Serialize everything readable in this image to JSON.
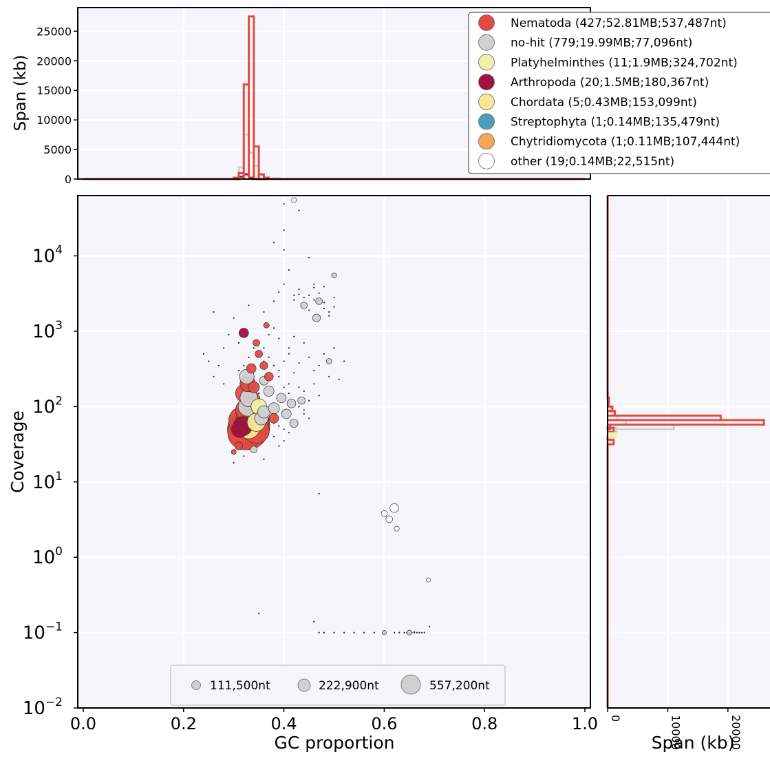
{
  "chart_data": [
    {
      "id": "gc-hist",
      "type": "histogram",
      "ylabel": "Span (kb)",
      "xlim": [
        0,
        1
      ],
      "ylim": [
        0,
        29000
      ],
      "yticks": [
        "0",
        "5000",
        "10000",
        "15000",
        "20000",
        "25000"
      ],
      "grid": true,
      "series": [
        {
          "name": "Nematoda",
          "color": "#e34a43",
          "bins": [
            [
              0.3,
              200
            ],
            [
              0.31,
              1000
            ],
            [
              0.32,
              16000
            ],
            [
              0.33,
              27500
            ],
            [
              0.34,
              5500
            ],
            [
              0.35,
              800
            ],
            [
              0.36,
              200
            ]
          ]
        },
        {
          "name": "no-hit",
          "color": "#d0d0d0",
          "bins": [
            [
              0.3,
              300
            ],
            [
              0.31,
              2000
            ],
            [
              0.32,
              7500
            ],
            [
              0.33,
              4500
            ],
            [
              0.34,
              2200
            ],
            [
              0.35,
              700
            ],
            [
              0.36,
              300
            ],
            [
              0.38,
              150
            ]
          ]
        },
        {
          "name": "Arthropoda",
          "color": "#a0123f",
          "bins": [
            [
              0.31,
              400
            ],
            [
              0.32,
              800
            ],
            [
              0.33,
              200
            ]
          ]
        },
        {
          "name": "Platyhelminthes",
          "color": "#f2f0a4",
          "bins": [
            [
              0.33,
              400
            ],
            [
              0.34,
              500
            ]
          ]
        }
      ]
    },
    {
      "id": "blob-scatter",
      "type": "scatter",
      "xlabel": "GC proportion",
      "ylabel": "Coverage",
      "xlim": [
        0,
        1
      ],
      "ylim_log10": [
        -2,
        4.8
      ],
      "xticks": [
        "0.0",
        "0.2",
        "0.4",
        "0.6",
        "0.8",
        "1.0"
      ],
      "yticks": [
        {
          "base": "10",
          "exp": "−2"
        },
        {
          "base": "10",
          "exp": "−1"
        },
        {
          "base": "10",
          "exp": "0"
        },
        {
          "base": "10",
          "exp": "1"
        },
        {
          "base": "10",
          "exp": "2"
        },
        {
          "base": "10",
          "exp": "3"
        },
        {
          "base": "10",
          "exp": "4"
        }
      ],
      "grid": true,
      "size_legend": [
        "111,500nt",
        "222,900nt",
        "557,200nt"
      ],
      "size_legend_values": [
        111500,
        222900,
        557200
      ],
      "points": [
        {
          "gc": 0.328,
          "cov": 50,
          "len": 537487,
          "color": "#e34a43"
        },
        {
          "gc": 0.335,
          "cov": 55,
          "len": 450000,
          "color": "#e34a43"
        },
        {
          "gc": 0.322,
          "cov": 45,
          "len": 380000,
          "color": "#e34a43"
        },
        {
          "gc": 0.34,
          "cov": 60,
          "len": 300000,
          "color": "#e34a43"
        },
        {
          "gc": 0.318,
          "cov": 65,
          "len": 260000,
          "color": "#e34a43"
        },
        {
          "gc": 0.345,
          "cov": 48,
          "len": 220000,
          "color": "#e34a43"
        },
        {
          "gc": 0.33,
          "cov": 75,
          "len": 200000,
          "color": "#e34a43"
        },
        {
          "gc": 0.325,
          "cov": 90,
          "len": 150000,
          "color": "#e34a43"
        },
        {
          "gc": 0.333,
          "cov": 120,
          "len": 130000,
          "color": "#e34a43"
        },
        {
          "gc": 0.322,
          "cov": 150,
          "len": 110000,
          "color": "#e34a43"
        },
        {
          "gc": 0.328,
          "cov": 100,
          "len": 120000,
          "color": "#d0d0d0"
        },
        {
          "gc": 0.33,
          "cov": 130,
          "len": 100000,
          "color": "#d0d0d0"
        },
        {
          "gc": 0.326,
          "cov": 250,
          "len": 70000,
          "color": "#d0d0d0"
        },
        {
          "gc": 0.328,
          "cov": 200,
          "len": 80000,
          "color": "#e34a43"
        },
        {
          "gc": 0.335,
          "cov": 320,
          "len": 30000,
          "color": "#e34a43"
        },
        {
          "gc": 0.338,
          "cov": 70,
          "len": 180367,
          "color": "#a0123f"
        },
        {
          "gc": 0.318,
          "cov": 55,
          "len": 120000,
          "color": "#a0123f"
        },
        {
          "gc": 0.312,
          "cov": 50,
          "len": 90000,
          "color": "#a0123f"
        },
        {
          "gc": 0.32,
          "cov": 950,
          "len": 30000,
          "color": "#a0123f"
        },
        {
          "gc": 0.35,
          "cov": 100,
          "len": 80000,
          "color": "#f2f0a4"
        },
        {
          "gc": 0.33,
          "cov": 52,
          "len": 153099,
          "color": "#fbe694"
        },
        {
          "gc": 0.345,
          "cov": 62,
          "len": 110000,
          "color": "#fbe694"
        },
        {
          "gc": 0.355,
          "cov": 70,
          "len": 60000,
          "color": "#d0d0d0"
        },
        {
          "gc": 0.36,
          "cov": 85,
          "len": 50000,
          "color": "#d0d0d0"
        },
        {
          "gc": 0.38,
          "cov": 95,
          "len": 40000,
          "color": "#d0d0d0"
        },
        {
          "gc": 0.37,
          "cov": 160,
          "len": 35000,
          "color": "#d0d0d0"
        },
        {
          "gc": 0.36,
          "cov": 220,
          "len": 25000,
          "color": "#d0d0d0"
        },
        {
          "gc": 0.395,
          "cov": 130,
          "len": 30000,
          "color": "#d0d0d0"
        },
        {
          "gc": 0.405,
          "cov": 80,
          "len": 30000,
          "color": "#d0d0d0"
        },
        {
          "gc": 0.415,
          "cov": 110,
          "len": 25000,
          "color": "#d0d0d0"
        },
        {
          "gc": 0.42,
          "cov": 60,
          "len": 22000,
          "color": "#d0d0d0"
        },
        {
          "gc": 0.435,
          "cov": 120,
          "len": 18000,
          "color": "#d0d0d0"
        },
        {
          "gc": 0.465,
          "cov": 1500,
          "len": 20000,
          "color": "#d0d0d0"
        },
        {
          "gc": 0.47,
          "cov": 2500,
          "len": 15000,
          "color": "#d0d0d0"
        },
        {
          "gc": 0.44,
          "cov": 2200,
          "len": 15000,
          "color": "#d0d0d0"
        },
        {
          "gc": 0.36,
          "cov": 350,
          "len": 20000,
          "color": "#e34a43"
        },
        {
          "gc": 0.35,
          "cov": 500,
          "len": 18000,
          "color": "#e34a43"
        },
        {
          "gc": 0.345,
          "cov": 700,
          "len": 15000,
          "color": "#e34a43"
        },
        {
          "gc": 0.365,
          "cov": 1200,
          "len": 10000,
          "color": "#e34a43"
        },
        {
          "gc": 0.34,
          "cov": 180,
          "len": 40000,
          "color": "#e34a43"
        },
        {
          "gc": 0.37,
          "cov": 250,
          "len": 25000,
          "color": "#e34a43"
        },
        {
          "gc": 0.38,
          "cov": 70,
          "len": 30000,
          "color": "#e34a43"
        },
        {
          "gc": 0.31,
          "cov": 30,
          "len": 20000,
          "color": "#e34a43"
        },
        {
          "gc": 0.3,
          "cov": 25,
          "len": 8000,
          "color": "#e34a43"
        },
        {
          "gc": 0.34,
          "cov": 27,
          "len": 15000,
          "color": "#d0d0d0"
        },
        {
          "gc": 0.62,
          "cov": 4.5,
          "len": 25000,
          "color": "#ffffff"
        },
        {
          "gc": 0.6,
          "cov": 3.8,
          "len": 12000,
          "color": "#ffffff"
        },
        {
          "gc": 0.61,
          "cov": 3.2,
          "len": 15000,
          "color": "#ffffff"
        },
        {
          "gc": 0.625,
          "cov": 2.4,
          "len": 8000,
          "color": "#ffffff"
        },
        {
          "gc": 0.688,
          "cov": 0.5,
          "len": 6000,
          "color": "#ffffff"
        },
        {
          "gc": 0.42,
          "cov": 55000,
          "len": 8000,
          "color": "#ffffff"
        },
        {
          "gc": 0.5,
          "cov": 5500,
          "len": 8000,
          "color": "#d0d0d0"
        },
        {
          "gc": 0.49,
          "cov": 400,
          "len": 10000,
          "color": "#d0d0d0"
        },
        {
          "gc": 0.65,
          "cov": 0.1,
          "len": 8000,
          "color": "#d0d0d0"
        },
        {
          "gc": 0.6,
          "cov": 0.1,
          "len": 6000,
          "color": "#d0d0d0"
        }
      ],
      "scatter_dots": [
        [
          0.25,
          400
        ],
        [
          0.24,
          500
        ],
        [
          0.26,
          250
        ],
        [
          0.27,
          350
        ],
        [
          0.28,
          200
        ],
        [
          0.28,
          600
        ],
        [
          0.29,
          900
        ],
        [
          0.3,
          1500
        ],
        [
          0.31,
          700
        ],
        [
          0.26,
          1800
        ],
        [
          0.33,
          2200
        ],
        [
          0.35,
          500
        ],
        [
          0.36,
          1800
        ],
        [
          0.37,
          1200
        ],
        [
          0.38,
          2500
        ],
        [
          0.39,
          3300
        ],
        [
          0.4,
          4200
        ],
        [
          0.41,
          6500
        ],
        [
          0.4,
          12000
        ],
        [
          0.4,
          22000
        ],
        [
          0.4,
          49000
        ],
        [
          0.43,
          40000
        ],
        [
          0.38,
          15000
        ],
        [
          0.42,
          3000
        ],
        [
          0.43,
          3600
        ],
        [
          0.44,
          2800
        ],
        [
          0.45,
          3000
        ],
        [
          0.46,
          2600
        ],
        [
          0.47,
          3200
        ],
        [
          0.48,
          2000
        ],
        [
          0.49,
          1800
        ],
        [
          0.5,
          2100
        ],
        [
          0.46,
          4200
        ],
        [
          0.48,
          3900
        ],
        [
          0.47,
          1600
        ],
        [
          0.45,
          1900
        ],
        [
          0.44,
          2400
        ],
        [
          0.42,
          2600
        ],
        [
          0.43,
          3100
        ],
        [
          0.46,
          3800
        ],
        [
          0.49,
          1600
        ],
        [
          0.48,
          2400
        ],
        [
          0.5,
          2800
        ],
        [
          0.45,
          9500
        ],
        [
          0.42,
          850
        ],
        [
          0.41,
          600
        ],
        [
          0.44,
          700
        ],
        [
          0.43,
          380
        ],
        [
          0.45,
          450
        ],
        [
          0.46,
          300
        ],
        [
          0.48,
          500
        ],
        [
          0.47,
          350
        ],
        [
          0.49,
          250
        ],
        [
          0.5,
          600
        ],
        [
          0.52,
          400
        ],
        [
          0.51,
          230
        ],
        [
          0.41,
          200
        ],
        [
          0.42,
          280
        ],
        [
          0.43,
          180
        ],
        [
          0.44,
          160
        ],
        [
          0.45,
          120
        ],
        [
          0.46,
          200
        ],
        [
          0.47,
          140
        ],
        [
          0.44,
          90
        ],
        [
          0.39,
          300
        ],
        [
          0.4,
          400
        ],
        [
          0.41,
          500
        ],
        [
          0.39,
          800
        ],
        [
          0.38,
          1100
        ],
        [
          0.37,
          900
        ],
        [
          0.36,
          600
        ],
        [
          0.37,
          450
        ],
        [
          0.38,
          350
        ],
        [
          0.39,
          250
        ],
        [
          0.4,
          180
        ],
        [
          0.41,
          150
        ],
        [
          0.42,
          120
        ],
        [
          0.43,
          100
        ],
        [
          0.44,
          80
        ],
        [
          0.45,
          70
        ],
        [
          0.37,
          70
        ],
        [
          0.38,
          60
        ],
        [
          0.39,
          55
        ],
        [
          0.4,
          50
        ],
        [
          0.41,
          45
        ],
        [
          0.42,
          60
        ],
        [
          0.4,
          35
        ],
        [
          0.39,
          30
        ],
        [
          0.38,
          40
        ],
        [
          0.36,
          110
        ],
        [
          0.35,
          150
        ],
        [
          0.34,
          250
        ],
        [
          0.36,
          400
        ],
        [
          0.34,
          600
        ],
        [
          0.33,
          450
        ],
        [
          0.32,
          350
        ],
        [
          0.31,
          300
        ],
        [
          0.3,
          18
        ],
        [
          0.32,
          22
        ],
        [
          0.36,
          20
        ],
        [
          0.35,
          0.18
        ],
        [
          0.47,
          7
        ],
        [
          0.46,
          0.14
        ],
        [
          0.47,
          0.1
        ],
        [
          0.48,
          0.1
        ],
        [
          0.5,
          0.1
        ],
        [
          0.52,
          0.1
        ],
        [
          0.54,
          0.1
        ],
        [
          0.56,
          0.1
        ],
        [
          0.58,
          0.1
        ],
        [
          0.6,
          0.1
        ],
        [
          0.62,
          0.1
        ],
        [
          0.63,
          0.1
        ],
        [
          0.64,
          0.1
        ],
        [
          0.645,
          0.1
        ],
        [
          0.65,
          0.1
        ],
        [
          0.655,
          0.1
        ],
        [
          0.66,
          0.1
        ],
        [
          0.665,
          0.1
        ],
        [
          0.67,
          0.1
        ],
        [
          0.675,
          0.1
        ],
        [
          0.68,
          0.1
        ],
        [
          0.69,
          0.12
        ],
        [
          0.65,
          0.105
        ],
        [
          0.66,
          0.102
        ]
      ]
    },
    {
      "id": "cov-hist",
      "type": "histogram",
      "orientation": "horizontal",
      "xlabel": "Span (kb)",
      "xticks": [
        "0",
        "10000",
        "20000"
      ],
      "xtick_values": [
        0,
        10000,
        20000
      ],
      "xlim": [
        0,
        27000
      ],
      "grid": true,
      "series": [
        {
          "name": "Nematoda",
          "color": "#e34a43",
          "bins": [
            [
              1.5,
              1000
            ],
            [
              1.6,
              1000
            ],
            [
              1.66,
              1000
            ],
            [
              1.7,
              400
            ],
            [
              1.76,
              26000
            ],
            [
              1.82,
              18800
            ],
            [
              1.88,
              1200
            ],
            [
              1.94,
              800
            ],
            [
              2.0,
              150
            ],
            [
              2.06,
              200
            ]
          ]
        },
        {
          "name": "no-hit",
          "color": "#d0d0d0",
          "bins": [
            [
              1.62,
              500
            ],
            [
              1.66,
              1500
            ],
            [
              1.7,
              11000
            ],
            [
              1.76,
              3000
            ],
            [
              1.82,
              1600
            ],
            [
              1.88,
              800
            ],
            [
              1.94,
              500
            ],
            [
              2.0,
              300
            ],
            [
              2.06,
              200
            ],
            [
              2.12,
              100
            ]
          ]
        }
      ]
    }
  ],
  "legend": {
    "entries": [
      {
        "label": "Nematoda (427;52.81MB;537,487nt)",
        "color": "#e34a43"
      },
      {
        "label": "no-hit (779;19.99MB;77,096nt)",
        "color": "#d0d0d0"
      },
      {
        "label": "Platyhelminthes (11;1.9MB;324,702nt)",
        "color": "#f2f0a4"
      },
      {
        "label": "Arthropoda (20;1.5MB;180,367nt)",
        "color": "#a0123f"
      },
      {
        "label": "Chordata (5;0.43MB;153,099nt)",
        "color": "#fbe694"
      },
      {
        "label": "Streptophyta (1;0.14MB;135,479nt)",
        "color": "#4aa0bb"
      },
      {
        "label": "Chytridiomycota (1;0.11MB;107,444nt)",
        "color": "#f7a653"
      },
      {
        "label": "other (19;0.14MB;22,515nt)",
        "color": "#ffffff"
      }
    ]
  },
  "colors": {
    "panel_bg": "#f6f6fa",
    "grid": "#ffffff"
  }
}
